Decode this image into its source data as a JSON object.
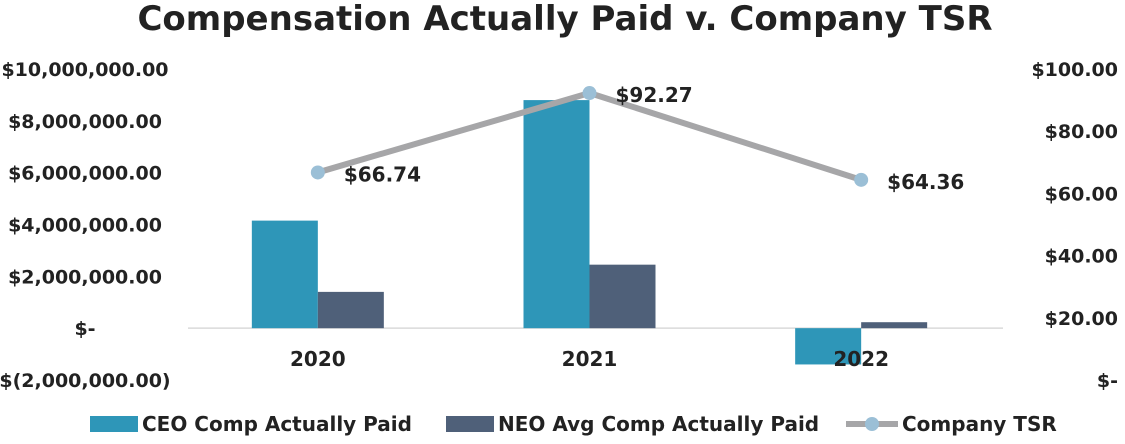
{
  "chart_data": {
    "type": "bar",
    "title": "Compensation Actually Paid v. Company TSR",
    "categories": [
      "2020",
      "2021",
      "2022"
    ],
    "series": [
      {
        "name": "CEO Comp Actually Paid",
        "kind": "bar",
        "axis": "left",
        "color": "#2e96b8",
        "values": [
          4150000,
          8800000,
          -1400000
        ]
      },
      {
        "name": "NEO Avg Comp Actually Paid",
        "kind": "bar",
        "axis": "left",
        "color": "#4f6079",
        "values": [
          1400000,
          2450000,
          230000
        ]
      },
      {
        "name": "Company TSR",
        "kind": "line",
        "axis": "right",
        "color": "#a6a6a8",
        "marker_color": "#9bbfd6",
        "values": [
          66.74,
          92.27,
          64.36
        ],
        "data_labels": [
          "$66.74",
          "$92.27",
          "$64.36"
        ]
      }
    ],
    "y_left": {
      "ylim": [
        -2000000,
        10000000
      ],
      "ticks": [
        10000000,
        8000000,
        6000000,
        4000000,
        2000000,
        0,
        -2000000
      ],
      "tick_labels": [
        "$10,000,000.00",
        "$8,000,000.00",
        "$6,000,000.00",
        "$4,000,000.00",
        "$2,000,000.00",
        "$-",
        "$(2,000,000.00)"
      ]
    },
    "y_right": {
      "ylim": [
        0,
        100
      ],
      "ticks": [
        100,
        80,
        60,
        40,
        20,
        0
      ],
      "tick_labels": [
        "$100.00",
        "$80.00",
        "$60.00",
        "$40.00",
        "$20.00",
        "$-"
      ]
    },
    "legend": {
      "position": "bottom"
    },
    "grid": false
  }
}
